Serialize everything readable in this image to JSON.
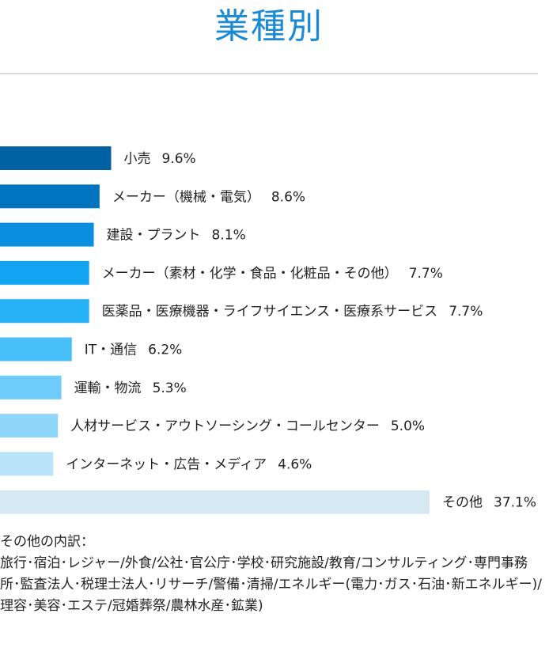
{
  "page_title": "業種別",
  "chart_data": {
    "type": "bar",
    "orientation": "horizontal",
    "categories": [
      "小売",
      "メーカー（機械・電気）",
      "建設・プラント",
      "メーカー（素材・化学・食品・化粧品・その他）",
      "医薬品・医療機器・ライフサイエンス・医療系サービス",
      "IT・通信",
      "運輸・物流",
      "人材サービス・アウトソーシング・コールセンター",
      "インターネット・広告・メディア",
      "その他"
    ],
    "values": [
      9.6,
      8.6,
      8.1,
      7.7,
      7.7,
      6.2,
      5.3,
      5.0,
      4.6,
      37.1
    ],
    "value_labels": [
      "9.6%",
      "8.6%",
      "8.1%",
      "7.7%",
      "7.7%",
      "6.2%",
      "5.3%",
      "5.0%",
      "4.6%",
      "37.1%"
    ],
    "colors": [
      "#0061a3",
      "#0074bf",
      "#0a8fe0",
      "#12a4f3",
      "#27b2f7",
      "#48bff8",
      "#6ecbfa",
      "#8fd6fb",
      "#b9e4fa",
      "#d6e9f3"
    ],
    "label_placement": [
      "right",
      "right",
      "right",
      "right",
      "right",
      "right",
      "right",
      "right",
      "right",
      "right"
    ],
    "xlim": [
      0,
      37.1
    ],
    "grid": false,
    "legend": "none"
  },
  "note": {
    "title": "その他の内訳：",
    "body": "旅行･宿泊･レジャー/外食/公社･官公庁･学校･研究施設/教育/コンサルティング･専門事務所･監査法人･税理士法人･リサーチ/警備･清掃/エネルギー(電力･ガス･石油･新エネルギー)/理容･美容･エステ/冠婚葬祭/農林水産･鉱業)"
  }
}
